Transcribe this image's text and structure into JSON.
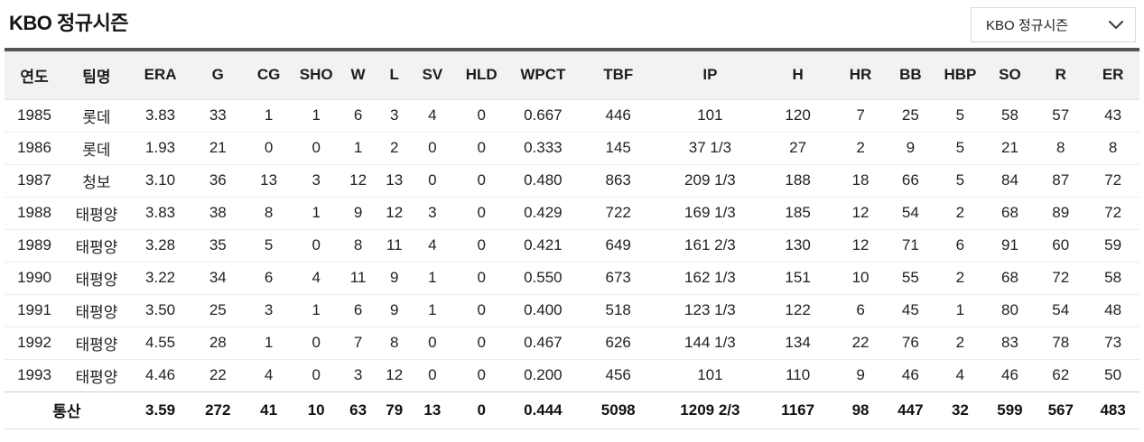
{
  "header": {
    "title": "KBO 정규시즌",
    "season_select": {
      "value": "KBO 정규시즌",
      "chevron_icon": "chevron-down-icon"
    }
  },
  "theme": {
    "table_top_border": "#55565a",
    "header_row_bg": "#f2f2f2",
    "row_separator": "#ececec",
    "text_color": "#222222"
  },
  "table": {
    "columns": [
      "연도",
      "팀명",
      "ERA",
      "G",
      "CG",
      "SHO",
      "W",
      "L",
      "SV",
      "HLD",
      "WPCT",
      "TBF",
      "IP",
      "H",
      "HR",
      "BB",
      "HBP",
      "SO",
      "R",
      "ER"
    ],
    "column_keys": [
      "year",
      "team",
      "era",
      "g",
      "cg",
      "sho",
      "w",
      "l",
      "sv",
      "hld",
      "wpct",
      "tbf",
      "ip",
      "h",
      "hr",
      "bb",
      "hbp",
      "so",
      "r",
      "er"
    ],
    "rows": [
      [
        "1985",
        "롯데",
        "3.83",
        "33",
        "1",
        "1",
        "6",
        "3",
        "4",
        "0",
        "0.667",
        "446",
        "101",
        "120",
        "7",
        "25",
        "5",
        "58",
        "57",
        "43"
      ],
      [
        "1986",
        "롯데",
        "1.93",
        "21",
        "0",
        "0",
        "1",
        "2",
        "0",
        "0",
        "0.333",
        "145",
        "37 1/3",
        "27",
        "2",
        "9",
        "5",
        "21",
        "8",
        "8"
      ],
      [
        "1987",
        "청보",
        "3.10",
        "36",
        "13",
        "3",
        "12",
        "13",
        "0",
        "0",
        "0.480",
        "863",
        "209 1/3",
        "188",
        "18",
        "66",
        "5",
        "84",
        "87",
        "72"
      ],
      [
        "1988",
        "태평양",
        "3.83",
        "38",
        "8",
        "1",
        "9",
        "12",
        "3",
        "0",
        "0.429",
        "722",
        "169 1/3",
        "185",
        "12",
        "54",
        "2",
        "68",
        "89",
        "72"
      ],
      [
        "1989",
        "태평양",
        "3.28",
        "35",
        "5",
        "0",
        "8",
        "11",
        "4",
        "0",
        "0.421",
        "649",
        "161 2/3",
        "130",
        "12",
        "71",
        "6",
        "91",
        "60",
        "59"
      ],
      [
        "1990",
        "태평양",
        "3.22",
        "34",
        "6",
        "4",
        "11",
        "9",
        "1",
        "0",
        "0.550",
        "673",
        "162 1/3",
        "151",
        "10",
        "55",
        "2",
        "68",
        "72",
        "58"
      ],
      [
        "1991",
        "태평양",
        "3.50",
        "25",
        "3",
        "1",
        "6",
        "9",
        "1",
        "0",
        "0.400",
        "518",
        "123 1/3",
        "122",
        "6",
        "45",
        "1",
        "80",
        "54",
        "48"
      ],
      [
        "1992",
        "태평양",
        "4.55",
        "28",
        "1",
        "0",
        "7",
        "8",
        "0",
        "0",
        "0.467",
        "626",
        "144 1/3",
        "134",
        "22",
        "76",
        "2",
        "83",
        "78",
        "73"
      ],
      [
        "1993",
        "태평양",
        "4.46",
        "22",
        "4",
        "0",
        "3",
        "12",
        "0",
        "0",
        "0.200",
        "456",
        "101",
        "110",
        "9",
        "46",
        "4",
        "46",
        "62",
        "50"
      ]
    ],
    "total": {
      "label": "통산",
      "values": [
        "3.59",
        "272",
        "41",
        "10",
        "63",
        "79",
        "13",
        "0",
        "0.444",
        "5098",
        "1209 2/3",
        "1167",
        "98",
        "447",
        "32",
        "599",
        "567",
        "483"
      ]
    }
  }
}
